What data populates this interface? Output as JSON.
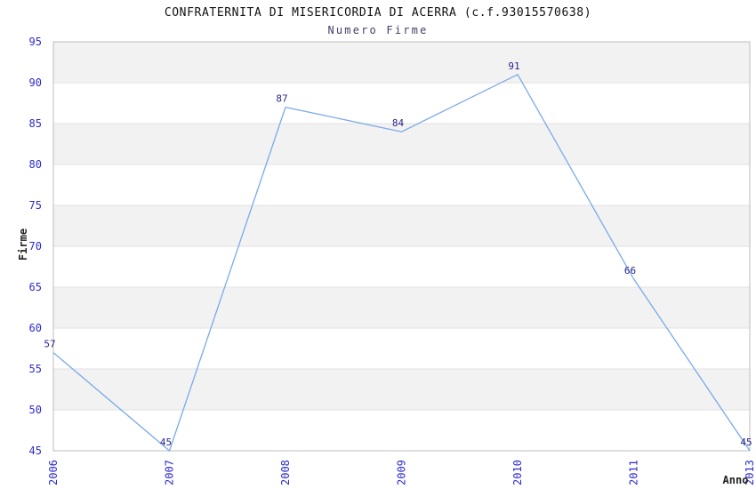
{
  "chart": {
    "title": "CONFRATERNITA DI MISERICORDIA DI ACERRA (c.f.93015570638)",
    "subtitle": "Numero Firme",
    "colors": {
      "line": "#7aaae8",
      "band_gray": "#f2f2f2",
      "band_white": "#ffffff",
      "grid": "#e2e2e2",
      "border": "#bcbcbc",
      "tick_label": "#2b2bd0",
      "data_label": "#26268c",
      "title": "#111111",
      "subtitle": "#3f3f6e",
      "axis_title": "#222222"
    }
  },
  "chart_data": {
    "type": "line",
    "categories": [
      "2006",
      "2007",
      "2008",
      "2009",
      "2010",
      "2011",
      "2013"
    ],
    "values": [
      57,
      45,
      87,
      84,
      91,
      66,
      45
    ],
    "title": "CONFRATERNITA DI MISERICORDIA DI ACERRA (c.f.93015570638)",
    "subtitle": "Numero Firme",
    "xlabel": "Anno",
    "ylabel": "Firme",
    "ylim": [
      45,
      95
    ],
    "ytick_step": 5,
    "grid": "horizontal-bands-alternating",
    "legend": "none",
    "point_labels_shown": true
  }
}
